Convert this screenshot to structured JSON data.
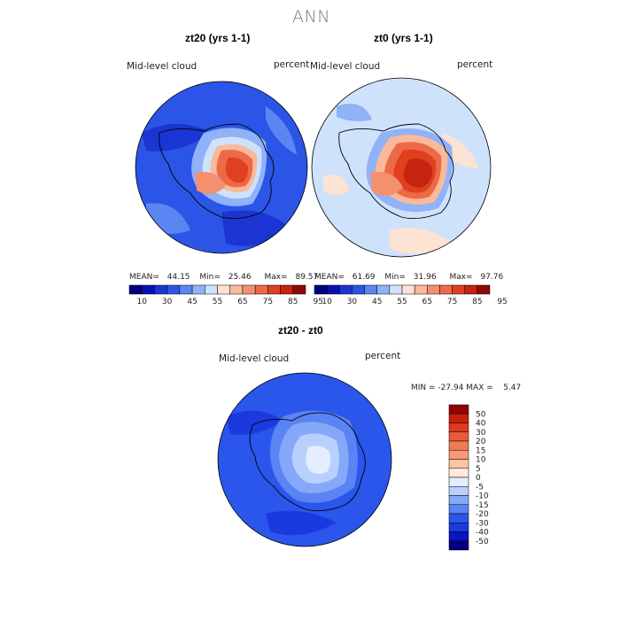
{
  "title": "ANN",
  "colors": {
    "scale11": [
      "#00007a",
      "#0a0fb4",
      "#1a35d2",
      "#2b55e6",
      "#5b86f2",
      "#8fb2f8",
      "#cfe2fc",
      "#fde3d3",
      "#f9b99a",
      "#f49070",
      "#ec6a47",
      "#e04020",
      "#c42410",
      "#8c0a06"
    ],
    "diff": [
      "#000080",
      "#0a14c0",
      "#1a3ae0",
      "#2a56ec",
      "#5a84f4",
      "#86a8f8",
      "#b8d0fc",
      "#e4eefe",
      "#ffe8dc",
      "#fcc4a8",
      "#f89a78",
      "#f07a56",
      "#e85a38",
      "#de3a1e",
      "#c8200c",
      "#900404"
    ]
  },
  "panels": [
    {
      "name": "zt20",
      "title": "zt20 (yrs 1-1)",
      "variable": "Mid-level cloud",
      "units": "percent",
      "mean_label": "MEAN=",
      "mean": "44.15",
      "min_label": "Min=",
      "min": "25.46",
      "max_label": "Max=",
      "max": "89.57",
      "colorbar_ticks": [
        "10",
        "30",
        "45",
        "55",
        "65",
        "75",
        "85",
        "95"
      ]
    },
    {
      "name": "zt0",
      "title": "zt0 (yrs 1-1)",
      "variable": "Mid-level cloud",
      "units": "percent",
      "mean_label": "MEAN=",
      "mean": "61.69",
      "min_label": "Min=",
      "min": "31.96",
      "max_label": "Max=",
      "max": "97.76",
      "colorbar_ticks": [
        "10",
        "30",
        "45",
        "55",
        "65",
        "75",
        "85",
        "95"
      ]
    }
  ],
  "difference": {
    "title": "zt20 - zt0",
    "variable": "Mid-level cloud",
    "units": "percent",
    "minmax_text": "MIN = -27.94 MAX =    5.47",
    "colorbar_ticks": [
      "50",
      "40",
      "30",
      "20",
      "15",
      "10",
      "5",
      "0",
      "-5",
      "-10",
      "-15",
      "-20",
      "-30",
      "-40",
      "-50"
    ]
  }
}
